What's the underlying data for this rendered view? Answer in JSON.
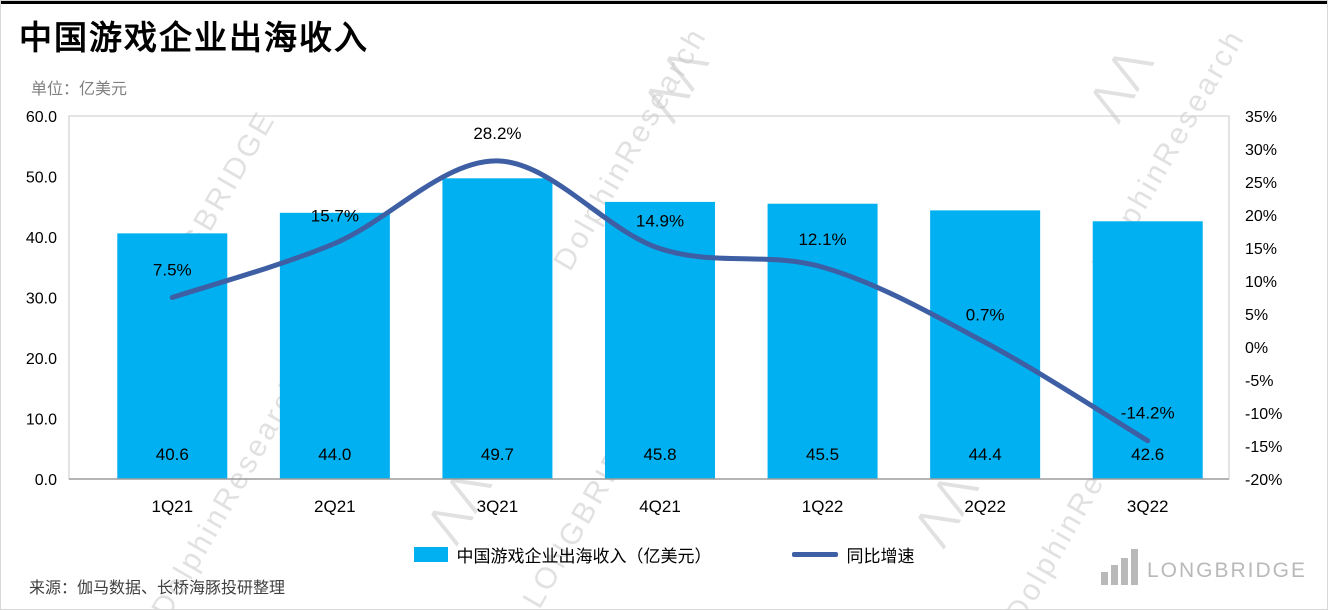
{
  "header": {
    "title": "中国游戏企业出海收入",
    "unit": "单位：亿美元"
  },
  "legend": {
    "bar_label": "中国游戏企业出海收入（亿美元）",
    "line_label": "同比增速"
  },
  "footer": {
    "source": "来源：伽马数据、长桥海豚投研整理",
    "brand": "LONGBRIDGE"
  },
  "watermark": {
    "brand": "LONGBRIDGE",
    "research": "DolphinResearch",
    "mountain_icon": "⋀⋀"
  },
  "chart_data": {
    "type": "bar",
    "subtype": "bar+line combo",
    "title": "中国游戏企业出海收入",
    "unit": "亿美元",
    "grid": false,
    "legend_position": "bottom",
    "categories": [
      "1Q21",
      "2Q21",
      "3Q21",
      "4Q21",
      "1Q22",
      "2Q22",
      "3Q22"
    ],
    "series": [
      {
        "name": "中国游戏企业出海收入（亿美元）",
        "type": "bar",
        "axis": "left",
        "color": "#00B0F0",
        "values": [
          40.6,
          44.0,
          49.7,
          45.8,
          45.5,
          44.4,
          42.6
        ],
        "labels": [
          "40.6",
          "44.0",
          "49.7",
          "45.8",
          "45.5",
          "44.4",
          "42.6"
        ]
      },
      {
        "name": "同比增速",
        "type": "line",
        "axis": "right",
        "color": "#3E5FA4",
        "values": [
          7.5,
          15.7,
          28.2,
          14.9,
          12.1,
          0.7,
          -14.2
        ],
        "labels": [
          "7.5%",
          "15.7%",
          "28.2%",
          "14.9%",
          "12.1%",
          "0.7%",
          "-14.2%"
        ]
      }
    ],
    "left_axis": {
      "min": 0,
      "max": 60,
      "step": 10,
      "labels": [
        "0.0",
        "10.0",
        "20.0",
        "30.0",
        "40.0",
        "50.0",
        "60.0"
      ]
    },
    "right_axis": {
      "min": -20,
      "max": 35,
      "step": 5,
      "labels": [
        "-20%",
        "-15%",
        "-10%",
        "-5%",
        "0%",
        "5%",
        "10%",
        "15%",
        "20%",
        "25%",
        "30%",
        "35%"
      ]
    }
  }
}
